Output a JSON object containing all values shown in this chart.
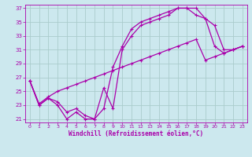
{
  "title": "",
  "xlabel": "Windchill (Refroidissement éolien,°C)",
  "bg_color": "#cce8ee",
  "grid_color": "#aacccc",
  "line_color": "#aa00aa",
  "xlim": [
    -0.5,
    23.5
  ],
  "ylim": [
    20.5,
    37.5
  ],
  "xticks": [
    0,
    1,
    2,
    3,
    4,
    5,
    6,
    7,
    8,
    9,
    10,
    11,
    12,
    13,
    14,
    15,
    16,
    17,
    18,
    19,
    20,
    21,
    22,
    23
  ],
  "yticks": [
    21,
    23,
    25,
    27,
    29,
    31,
    33,
    35,
    37
  ],
  "line1_x": [
    0,
    1,
    2,
    3,
    4,
    5,
    6,
    7,
    8,
    9,
    10,
    11,
    12,
    13,
    14,
    15,
    16,
    17,
    18,
    19,
    20,
    21,
    22,
    23
  ],
  "line1_y": [
    26.5,
    23.0,
    24.0,
    23.0,
    21.0,
    22.0,
    21.0,
    21.0,
    25.5,
    22.5,
    31.0,
    33.0,
    34.5,
    35.0,
    35.5,
    36.0,
    37.0,
    37.0,
    37.0,
    35.5,
    34.5,
    31.0,
    31.0,
    31.5
  ],
  "line2_x": [
    0,
    1,
    2,
    3,
    4,
    5,
    6,
    7,
    8,
    9,
    10,
    11,
    12,
    13,
    14,
    15,
    16,
    17,
    18,
    19,
    20,
    21,
    22,
    23
  ],
  "line2_y": [
    26.5,
    23.0,
    24.0,
    23.5,
    22.0,
    22.5,
    21.5,
    21.0,
    22.5,
    28.5,
    31.5,
    34.0,
    35.0,
    35.5,
    36.0,
    36.5,
    37.0,
    37.0,
    36.0,
    35.5,
    31.5,
    30.5,
    31.0,
    31.5
  ],
  "line3_x": [
    0,
    1,
    2,
    3,
    4,
    5,
    6,
    7,
    8,
    9,
    10,
    11,
    12,
    13,
    14,
    15,
    16,
    17,
    18,
    19,
    20,
    21,
    22,
    23
  ],
  "line3_y": [
    26.5,
    23.2,
    24.2,
    25.0,
    25.5,
    26.0,
    26.5,
    27.0,
    27.5,
    28.0,
    28.5,
    29.0,
    29.5,
    30.0,
    30.5,
    31.0,
    31.5,
    32.0,
    32.5,
    29.5,
    30.0,
    30.5,
    31.0,
    31.5
  ]
}
